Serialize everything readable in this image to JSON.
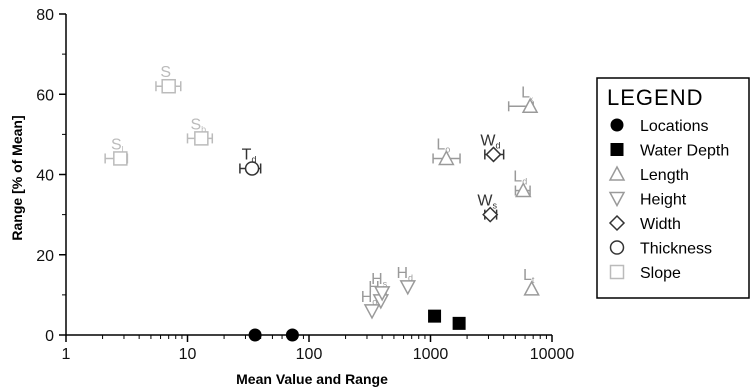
{
  "chart_data": {
    "type": "scatter",
    "xlabel": "Mean Value and Range",
    "ylabel": "Range [% of Mean]",
    "xscale": "log",
    "xlim": [
      1,
      10000
    ],
    "ylim": [
      0,
      80
    ],
    "x_ticks": [
      {
        "value": 1,
        "label": "1"
      },
      {
        "value": 10,
        "label": "10"
      },
      {
        "value": 100,
        "label": "100"
      },
      {
        "value": 1000,
        "label": "1000"
      },
      {
        "value": 10000,
        "label": "10000"
      }
    ],
    "y_ticks": [
      {
        "value": 0,
        "label": "0"
      },
      {
        "value": 20,
        "label": "20"
      },
      {
        "value": 40,
        "label": "40"
      },
      {
        "value": 60,
        "label": "60"
      },
      {
        "value": 80,
        "label": "80"
      }
    ],
    "grid": false,
    "legend": {
      "title": "LEGEND",
      "placement": "right",
      "entries": [
        {
          "label": "Locations",
          "marker": "circle-filled",
          "color": "#000000"
        },
        {
          "label": "Water Depth",
          "marker": "square-filled",
          "color": "#000000"
        },
        {
          "label": "Length",
          "marker": "triangle-up",
          "color": "#9a9a9a"
        },
        {
          "label": "Height",
          "marker": "triangle-down",
          "color": "#9a9a9a"
        },
        {
          "label": "Width",
          "marker": "diamond",
          "color": "#333333"
        },
        {
          "label": "Thickness",
          "marker": "circle-open",
          "color": "#333333"
        },
        {
          "label": "Slope",
          "marker": "square-open",
          "color": "#bbbbbb"
        }
      ]
    },
    "series": [
      {
        "name": "Locations",
        "marker": "circle-filled",
        "color": "#000000",
        "points": [
          {
            "x": 36,
            "y": 0
          },
          {
            "x": 73,
            "y": 0
          }
        ]
      },
      {
        "name": "Water Depth",
        "marker": "square-filled",
        "color": "#000000",
        "points": [
          {
            "x": 1080,
            "y": 4.7
          },
          {
            "x": 1720,
            "y": 2.9
          }
        ]
      },
      {
        "name": "Length",
        "marker": "triangle-up",
        "color": "#9a9a9a",
        "points": [
          {
            "x": 1350,
            "y": 44,
            "label": "Lo",
            "xerr": [
              1050,
              1750
            ]
          },
          {
            "x": 6600,
            "y": 57,
            "label": "Lₓ",
            "xerr": [
              4400,
              7000
            ]
          },
          {
            "x": 5800,
            "y": 36,
            "label": "Ld",
            "xerr": [
              5000,
              6600
            ]
          },
          {
            "x": 6800,
            "y": 11.5,
            "label": "Lt"
          }
        ]
      },
      {
        "name": "Height",
        "marker": "triangle-down",
        "color": "#9a9a9a",
        "points": [
          {
            "x": 390,
            "y": 8.5,
            "label": "Hm"
          },
          {
            "x": 650,
            "y": 12,
            "label": "Hd"
          },
          {
            "x": 400,
            "y": 10.5,
            "label": "Hs"
          },
          {
            "x": 330,
            "y": 6,
            "label": "Ho"
          }
        ]
      },
      {
        "name": "Width",
        "marker": "diamond",
        "color": "#333333",
        "points": [
          {
            "x": 3300,
            "y": 45,
            "label": "Wd",
            "xerr": [
              2800,
              4000
            ]
          },
          {
            "x": 3100,
            "y": 30,
            "label": "Ws",
            "xerr": [
              2800,
              3500
            ]
          }
        ]
      },
      {
        "name": "Thickness",
        "marker": "circle-open",
        "color": "#333333",
        "points": [
          {
            "x": 34,
            "y": 41.5,
            "label": "Td",
            "xerr": [
              27,
              40
            ]
          }
        ]
      },
      {
        "name": "Slope",
        "marker": "square-open",
        "color": "#bbbbbb",
        "points": [
          {
            "x": 7,
            "y": 62,
            "label": "S",
            "xerr": [
              5.5,
              8.8
            ]
          },
          {
            "x": 13,
            "y": 49,
            "label": "Sb",
            "xerr": [
              10,
              16
            ]
          },
          {
            "x": 2.8,
            "y": 44,
            "label": "Sl",
            "xerr": [
              2.1,
              3.2
            ]
          }
        ]
      }
    ]
  }
}
